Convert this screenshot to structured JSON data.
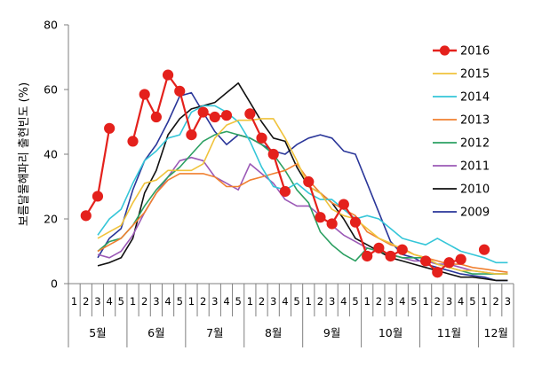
{
  "chart_data": {
    "type": "line",
    "ylabel": "보름달물해파리 출현빈도 (%)",
    "ylim": [
      0,
      80
    ],
    "yticks": [
      0,
      20,
      40,
      60,
      80
    ],
    "grid": false,
    "legend_position": "right",
    "week_labels": [
      "1",
      "2",
      "3",
      "4",
      "5",
      "1",
      "2",
      "3",
      "4",
      "5",
      "1",
      "2",
      "3",
      "4",
      "5",
      "1",
      "2",
      "3",
      "4",
      "5",
      "1",
      "2",
      "3",
      "4",
      "5",
      "1",
      "2",
      "3",
      "4",
      "5",
      "1",
      "2",
      "3",
      "4",
      "5",
      "1",
      "2",
      "3"
    ],
    "months": [
      {
        "label": "5월",
        "weeks": 5
      },
      {
        "label": "6월",
        "weeks": 5
      },
      {
        "label": "7월",
        "weeks": 5
      },
      {
        "label": "8월",
        "weeks": 5
      },
      {
        "label": "9월",
        "weeks": 5
      },
      {
        "label": "10월",
        "weeks": 5
      },
      {
        "label": "11월",
        "weeks": 5
      },
      {
        "label": "12월",
        "weeks": 3
      }
    ],
    "series": [
      {
        "name": "2016",
        "color": "#e4211c",
        "markers": true,
        "values": [
          null,
          21,
          27,
          48,
          null,
          44,
          58.5,
          51.5,
          64.5,
          59.5,
          46,
          53,
          51.5,
          52,
          null,
          52.5,
          45,
          40,
          28.5,
          null,
          31.5,
          20.5,
          18.5,
          24.5,
          19,
          8.5,
          11,
          8.5,
          10.5,
          null,
          7,
          3.5,
          6.5,
          7.5,
          null,
          10.5,
          null,
          null
        ]
      },
      {
        "name": "2015",
        "color": "#f0c33c",
        "markers": false,
        "values": [
          null,
          null,
          14,
          16,
          18,
          25,
          31,
          32,
          35,
          35,
          35,
          37,
          45,
          49,
          50.5,
          50.5,
          51,
          51,
          45,
          38,
          30,
          28,
          23,
          21,
          20,
          17,
          14,
          12.5,
          10.5,
          9,
          8,
          6,
          5,
          4,
          4,
          3.5,
          3,
          3
        ]
      },
      {
        "name": "2014",
        "color": "#35c6d8",
        "markers": false,
        "values": [
          null,
          null,
          15,
          20,
          23,
          31,
          38,
          41,
          45,
          46,
          53,
          55,
          55,
          53,
          50,
          44,
          36,
          30,
          29,
          31,
          28,
          26,
          26,
          23,
          20,
          21,
          20,
          17,
          14,
          13,
          12,
          14,
          12,
          10,
          9,
          8,
          6.5,
          6.5
        ]
      },
      {
        "name": "2013",
        "color": "#f08030",
        "markers": false,
        "values": [
          null,
          null,
          10,
          12,
          14,
          18,
          22,
          28,
          32,
          34,
          34,
          34,
          33,
          30,
          30,
          32,
          33,
          34,
          35,
          37,
          32,
          28,
          25,
          23,
          21,
          16,
          14,
          12,
          11,
          9,
          8,
          7,
          6,
          6,
          5,
          4.5,
          4,
          3.5
        ]
      },
      {
        "name": "2012",
        "color": "#2ca062",
        "markers": false,
        "values": [
          null,
          null,
          10,
          13,
          14,
          18,
          24,
          29,
          33,
          36,
          40,
          44,
          46,
          47,
          46,
          45,
          43,
          40,
          35,
          29,
          25,
          16,
          12,
          9,
          7,
          11,
          10,
          9,
          8,
          8,
          8,
          6,
          5,
          4,
          3,
          3,
          3,
          3
        ]
      },
      {
        "name": "2011",
        "color": "#9b59b6",
        "markers": false,
        "values": [
          null,
          null,
          9,
          8,
          10,
          15,
          22,
          28,
          33,
          38,
          39,
          38,
          33,
          31,
          29,
          37,
          34,
          31,
          26,
          24,
          24,
          21,
          18,
          15,
          13,
          11,
          10,
          9,
          8,
          7,
          7,
          6,
          6,
          5,
          4,
          3.5,
          3,
          3
        ]
      },
      {
        "name": "2010",
        "color": "#111111",
        "markers": false,
        "values": [
          null,
          null,
          5.5,
          6.5,
          8,
          14,
          28,
          35,
          46,
          51,
          54,
          55,
          56,
          59,
          62,
          56,
          50,
          45,
          44,
          36,
          30,
          28,
          25,
          20,
          14,
          12,
          10,
          8,
          7,
          6,
          5,
          4,
          3,
          2,
          2,
          1.5,
          1,
          1
        ]
      },
      {
        "name": "2009",
        "color": "#2a3699",
        "markers": false,
        "values": [
          null,
          null,
          8,
          14,
          17,
          29,
          38,
          43,
          50,
          58,
          59,
          53,
          47,
          43,
          46,
          45,
          43,
          41,
          40,
          43,
          45,
          46,
          45,
          41,
          40,
          31,
          22,
          13,
          9,
          8,
          6,
          5,
          4,
          3,
          2.5,
          2,
          1,
          1
        ]
      }
    ]
  }
}
